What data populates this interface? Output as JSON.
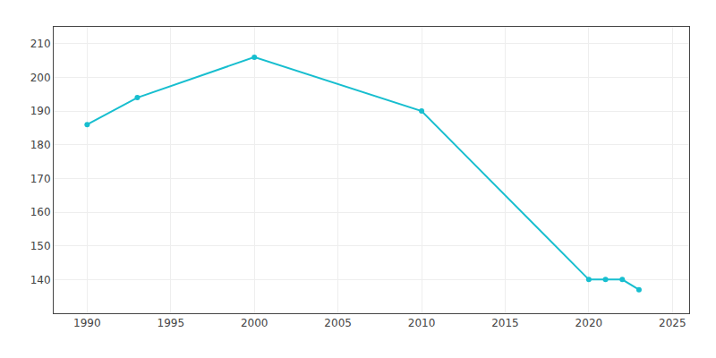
{
  "chart_data": {
    "type": "line",
    "x": [
      1990,
      1993,
      2000,
      2010,
      2020,
      2021,
      2022,
      2023
    ],
    "values": [
      186,
      194,
      206,
      190,
      140,
      140,
      140,
      137
    ],
    "color": "#17BECF",
    "marker": "circle",
    "xlim": [
      1988,
      2026
    ],
    "xticks": [
      1990,
      1995,
      2000,
      2005,
      2010,
      2015,
      2020,
      2025
    ],
    "ylim": [
      130,
      215
    ],
    "yticks": [
      140,
      150,
      160,
      170,
      180,
      190,
      200,
      210
    ],
    "grid": true
  }
}
